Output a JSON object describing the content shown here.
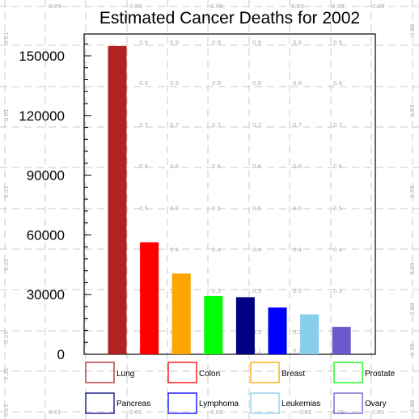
{
  "chart_data": {
    "type": "bar",
    "title": "Estimated Cancer Deaths for 2002",
    "xlabel": "",
    "ylabel": "",
    "ylim": [
      0,
      160000
    ],
    "yticks": [
      0,
      30000,
      60000,
      90000,
      120000,
      150000
    ],
    "ytick_labels": [
      "0",
      "30000",
      "60000",
      "90000",
      "120000",
      "150000"
    ],
    "categories": [
      "Lung",
      "Colon",
      "Breast",
      "Prostate",
      "Pancreas",
      "Lymphoma",
      "Leukemias",
      "Ovary"
    ],
    "values": [
      154900,
      56300,
      40600,
      29300,
      28700,
      23500,
      20100,
      13800
    ],
    "colors": [
      "#b22222",
      "#ff0000",
      "#ffa500",
      "#00ff00",
      "#000080",
      "#0000ff",
      "#87ceeb",
      "#6a5acd"
    ],
    "legend_position": "bottom",
    "grid": true
  },
  "background_grid": {
    "labels_top": [
      "0.99",
      "0.99",
      "0.98",
      "0.99",
      "0.99",
      "0.99"
    ],
    "labels_bottom": [
      "0.01",
      "0.01",
      "0.01",
      "0.01",
      "0.01",
      "0.01"
    ],
    "labels_left": [
      "0.01",
      "0.01",
      "0.01",
      "0.01",
      "0.01",
      "0.01",
      "0.01"
    ],
    "labels_right": [
      "0.99",
      "0.99",
      "0.99",
      "0.99",
      "0.99",
      "0.99",
      "0.99"
    ],
    "labels_inner": [
      "0.9",
      "0.8",
      "0.7",
      "0.6",
      "0.5",
      "0.4",
      "0.3",
      "0.2",
      "0.1"
    ]
  }
}
